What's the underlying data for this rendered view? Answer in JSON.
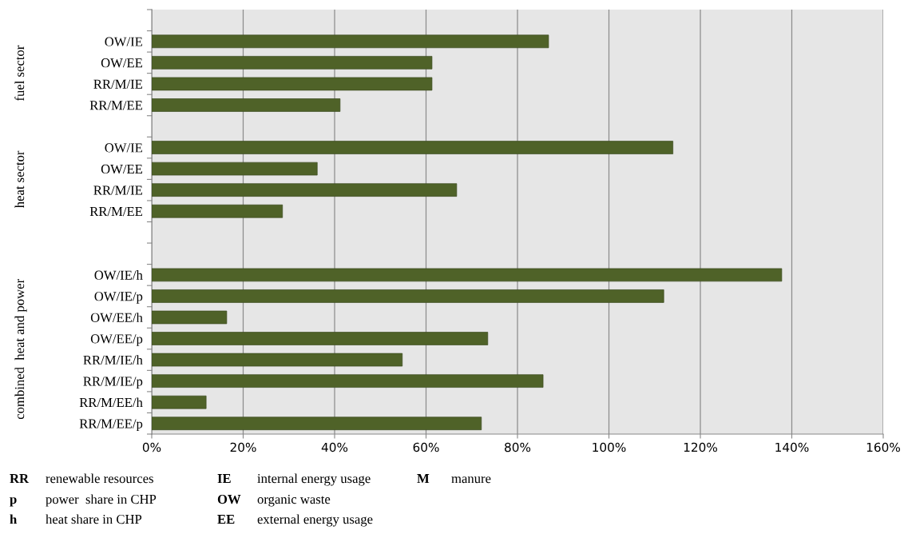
{
  "chart_data": {
    "type": "bar",
    "orientation": "horizontal",
    "categories": [
      null,
      "OW/IE",
      "OW/EE",
      "RR/M/IE",
      "RR/M/EE",
      null,
      "OW/IE",
      "OW/EE",
      "RR/M/IE",
      "RR/M/EE",
      null,
      null,
      "OW/IE/h",
      "OW/IE/p",
      "OW/EE/h",
      "OW/EE/p",
      "RR/M/IE/h",
      "RR/M/IE/p",
      "RR/M/EE/h",
      "RR/M/EE/p"
    ],
    "values": [
      null,
      86.8,
      61.3,
      61.3,
      41.2,
      null,
      114,
      36.2,
      66.7,
      28.6,
      null,
      null,
      137.8,
      112,
      16.4,
      73.5,
      54.8,
      85.6,
      11.9,
      72.1
    ],
    "color": "#4f6228",
    "xlim": [
      0,
      160
    ],
    "xticks": [
      {
        "value": 0,
        "label": "0%"
      },
      {
        "value": 20,
        "label": "20%"
      },
      {
        "value": 40,
        "label": "40%"
      },
      {
        "value": 60,
        "label": "60%"
      },
      {
        "value": 80,
        "label": "80%"
      },
      {
        "value": 100,
        "label": "100%"
      },
      {
        "value": 120,
        "label": "120%"
      },
      {
        "value": 140,
        "label": "140%"
      },
      {
        "value": 160,
        "label": "160%"
      }
    ],
    "grid": "x",
    "annotations": [
      "fuel sector",
      "heat sector",
      "combined  heat and power",
      "RR  renewable resources",
      "IE  internal energy usage",
      "M  manure",
      "p  power  share in CHP",
      "OW  organic waste",
      "h  heat share in CHP",
      "EE  external energy usage"
    ]
  }
}
